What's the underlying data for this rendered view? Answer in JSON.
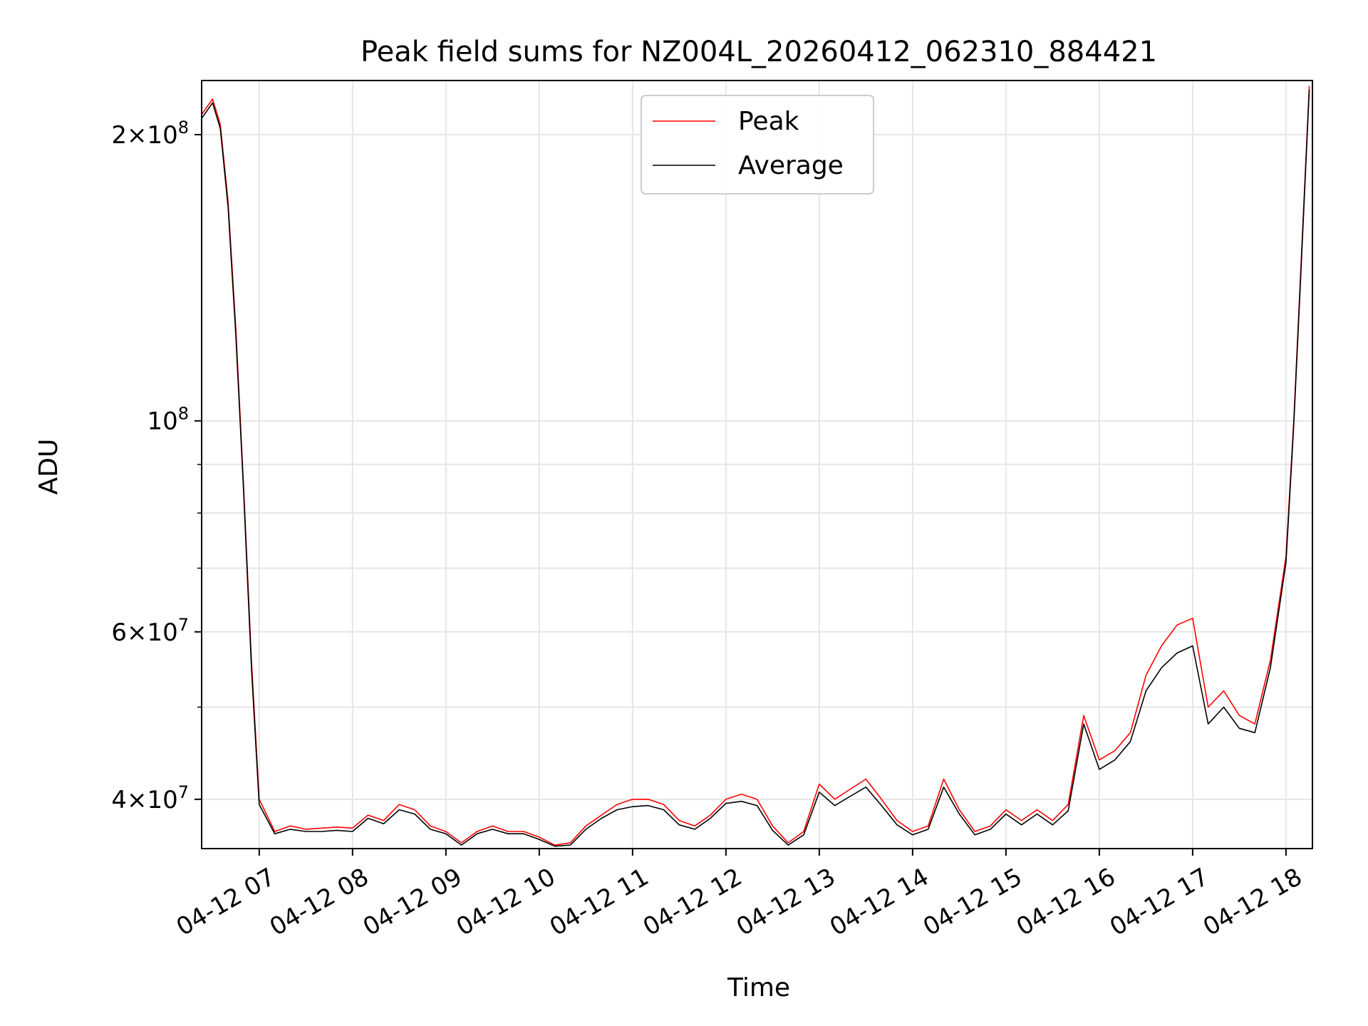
{
  "chart_data": {
    "type": "line",
    "title": "Peak field sums for NZ004L_20260412_062310_884421",
    "xlabel": "Time",
    "ylabel": "ADU",
    "yscale": "log",
    "xlim": [
      "2026-04-12T06:23",
      "2026-04-12T18:17"
    ],
    "ylim": [
      35500000,
      228000000
    ],
    "grid": true,
    "legend": "upper center",
    "x_ticks": [
      {
        "t": "2026-04-12T07:00",
        "label": "04-12 07"
      },
      {
        "t": "2026-04-12T08:00",
        "label": "04-12 08"
      },
      {
        "t": "2026-04-12T09:00",
        "label": "04-12 09"
      },
      {
        "t": "2026-04-12T10:00",
        "label": "04-12 10"
      },
      {
        "t": "2026-04-12T11:00",
        "label": "04-12 11"
      },
      {
        "t": "2026-04-12T12:00",
        "label": "04-12 12"
      },
      {
        "t": "2026-04-12T13:00",
        "label": "04-12 13"
      },
      {
        "t": "2026-04-12T14:00",
        "label": "04-12 14"
      },
      {
        "t": "2026-04-12T15:00",
        "label": "04-12 15"
      },
      {
        "t": "2026-04-12T16:00",
        "label": "04-12 16"
      },
      {
        "t": "2026-04-12T17:00",
        "label": "04-12 17"
      },
      {
        "t": "2026-04-12T18:00",
        "label": "04-12 18"
      }
    ],
    "y_ticks_major": [
      {
        "value": 40000000,
        "mantissa": "4",
        "exp": "7"
      },
      {
        "value": 60000000,
        "mantissa": "6",
        "exp": "7"
      },
      {
        "value": 100000000,
        "mantissa": "",
        "exp": "8"
      },
      {
        "value": 200000000,
        "mantissa": "2",
        "exp": "8"
      }
    ],
    "y_ticks_minor": [
      50000000,
      70000000,
      80000000,
      90000000
    ],
    "x": [
      "2026-04-12T06:23",
      "2026-04-12T06:30",
      "2026-04-12T06:35",
      "2026-04-12T06:40",
      "2026-04-12T06:45",
      "2026-04-12T06:50",
      "2026-04-12T06:55",
      "2026-04-12T07:00",
      "2026-04-12T07:10",
      "2026-04-12T07:20",
      "2026-04-12T07:30",
      "2026-04-12T07:40",
      "2026-04-12T07:50",
      "2026-04-12T08:00",
      "2026-04-12T08:10",
      "2026-04-12T08:20",
      "2026-04-12T08:30",
      "2026-04-12T08:40",
      "2026-04-12T08:50",
      "2026-04-12T09:00",
      "2026-04-12T09:10",
      "2026-04-12T09:20",
      "2026-04-12T09:30",
      "2026-04-12T09:40",
      "2026-04-12T09:50",
      "2026-04-12T10:00",
      "2026-04-12T10:10",
      "2026-04-12T10:20",
      "2026-04-12T10:30",
      "2026-04-12T10:40",
      "2026-04-12T10:50",
      "2026-04-12T11:00",
      "2026-04-12T11:10",
      "2026-04-12T11:20",
      "2026-04-12T11:30",
      "2026-04-12T11:40",
      "2026-04-12T11:50",
      "2026-04-12T12:00",
      "2026-04-12T12:10",
      "2026-04-12T12:20",
      "2026-04-12T12:30",
      "2026-04-12T12:40",
      "2026-04-12T12:50",
      "2026-04-12T13:00",
      "2026-04-12T13:10",
      "2026-04-12T13:20",
      "2026-04-12T13:30",
      "2026-04-12T13:40",
      "2026-04-12T13:50",
      "2026-04-12T14:00",
      "2026-04-12T14:10",
      "2026-04-12T14:20",
      "2026-04-12T14:30",
      "2026-04-12T14:40",
      "2026-04-12T14:50",
      "2026-04-12T15:00",
      "2026-04-12T15:10",
      "2026-04-12T15:20",
      "2026-04-12T15:30",
      "2026-04-12T15:40",
      "2026-04-12T15:50",
      "2026-04-12T16:00",
      "2026-04-12T16:10",
      "2026-04-12T16:20",
      "2026-04-12T16:30",
      "2026-04-12T16:40",
      "2026-04-12T16:50",
      "2026-04-12T17:00",
      "2026-04-12T17:10",
      "2026-04-12T17:20",
      "2026-04-12T17:30",
      "2026-04-12T17:40",
      "2026-04-12T17:50",
      "2026-04-12T18:00",
      "2026-04-12T18:05",
      "2026-04-12T18:10",
      "2026-04-12T18:15"
    ],
    "series": [
      {
        "name": "Peak",
        "color": "#ff0000",
        "values": [
          210000000,
          218000000,
          205000000,
          170000000,
          125000000,
          85000000,
          56000000,
          40000000,
          37000000,
          37500000,
          37200000,
          37300000,
          37400000,
          37300000,
          38500000,
          38000000,
          39500000,
          39000000,
          37500000,
          37000000,
          36000000,
          37000000,
          37500000,
          37000000,
          37000000,
          36500000,
          35800000,
          36000000,
          37500000,
          38500000,
          39500000,
          40000000,
          40000000,
          39500000,
          38000000,
          37500000,
          38500000,
          40000000,
          40500000,
          40000000,
          37500000,
          36000000,
          37000000,
          41500000,
          40000000,
          41000000,
          42000000,
          40000000,
          38000000,
          37000000,
          37500000,
          42000000,
          39000000,
          37000000,
          37500000,
          39000000,
          38000000,
          39000000,
          38000000,
          39500000,
          49000000,
          44000000,
          45000000,
          47000000,
          54000000,
          58000000,
          61000000,
          62000000,
          50000000,
          52000000,
          49000000,
          48000000,
          56000000,
          72000000,
          100000000,
          150000000,
          225000000
        ]
      },
      {
        "name": "Average",
        "color": "#000000",
        "values": [
          208000000,
          216000000,
          203000000,
          168000000,
          123000000,
          84000000,
          55000000,
          39500000,
          36800000,
          37200000,
          37000000,
          37000000,
          37100000,
          37000000,
          38200000,
          37700000,
          39000000,
          38600000,
          37200000,
          36800000,
          35800000,
          36800000,
          37200000,
          36800000,
          36800000,
          36300000,
          35700000,
          35800000,
          37200000,
          38200000,
          39000000,
          39300000,
          39400000,
          39000000,
          37600000,
          37200000,
          38200000,
          39600000,
          39800000,
          39400000,
          37100000,
          35800000,
          36700000,
          40700000,
          39400000,
          40300000,
          41200000,
          39400000,
          37600000,
          36700000,
          37200000,
          41200000,
          38600000,
          36700000,
          37200000,
          38600000,
          37600000,
          38600000,
          37600000,
          38900000,
          48000000,
          43000000,
          44000000,
          46000000,
          52000000,
          55000000,
          57000000,
          58000000,
          48000000,
          50000000,
          47500000,
          47000000,
          55000000,
          71000000,
          99000000,
          148000000,
          223000000
        ]
      }
    ]
  }
}
